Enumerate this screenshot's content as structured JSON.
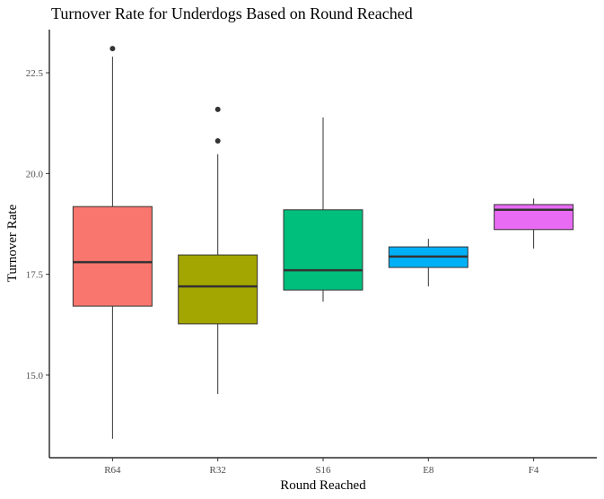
{
  "chart_data": {
    "type": "box",
    "title": "Turnover Rate for Underdogs Based on Round Reached",
    "x_label": "Round Reached",
    "y_label": "Turnover Rate",
    "categories": [
      "R64",
      "R32",
      "S16",
      "E8",
      "F4"
    ],
    "colors": [
      "#F8766D",
      "#A3A500",
      "#00BF7D",
      "#00B0F6",
      "#E76BF3"
    ],
    "min": [
      13.42,
      14.53,
      16.82,
      17.2,
      18.14
    ],
    "q1": [
      16.71,
      16.27,
      17.11,
      17.67,
      18.61
    ],
    "median": [
      17.8,
      17.2,
      17.6,
      17.94,
      19.1
    ],
    "q3": [
      19.18,
      17.98,
      19.1,
      18.18,
      19.23
    ],
    "max": [
      22.9,
      20.48,
      21.39,
      18.38,
      19.38
    ],
    "outliers": [
      [
        23.1
      ],
      [
        21.59,
        20.81
      ],
      [],
      [],
      []
    ],
    "ylim": [
      12.95,
      23.57
    ],
    "yticks": [
      {
        "value": 15,
        "label": "15.0"
      },
      17.5,
      {
        "value": 20,
        "label": "20.0"
      },
      22.5
    ]
  }
}
